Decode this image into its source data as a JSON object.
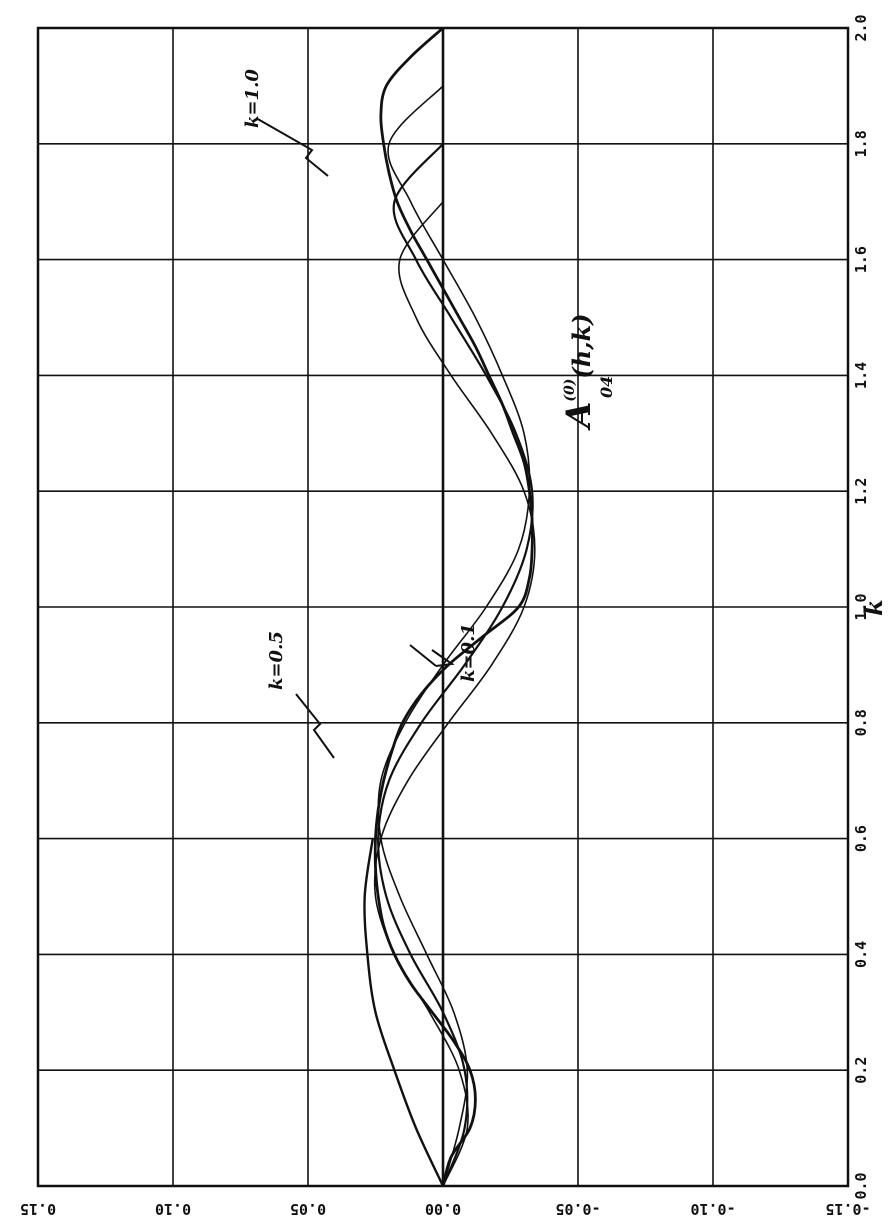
{
  "chart_data": {
    "type": "line",
    "orientation": "rotated-90-clockwise",
    "xlabel": "k",
    "ylabel": "",
    "function_label": "A",
    "function_superscript": "(0)",
    "function_subscript": "04",
    "function_args": "(h,k)",
    "xlim": [
      0.0,
      2.0
    ],
    "ylim": [
      -0.15,
      0.15
    ],
    "x_ticks": [
      "0.0",
      "0.2",
      "0.4",
      "0.6",
      "0.8",
      "1.0",
      "1.2",
      "1.4",
      "1.6",
      "1.8",
      "2.0"
    ],
    "y_ticks": [
      "-0.15",
      "-0.10",
      "-0.05",
      "0.00",
      "0.05",
      "0.10",
      "0.15"
    ],
    "grid": true,
    "annotations": [
      "k=1.0",
      "k=0.5",
      "k=0.1"
    ],
    "series": [
      {
        "x": [
          0.0,
          0.05,
          0.1,
          0.15,
          0.2,
          0.25,
          0.3,
          0.35,
          0.4,
          0.45,
          0.5,
          0.55,
          0.6,
          0.65,
          0.7,
          0.75,
          0.8,
          0.85,
          0.9,
          0.95,
          1.0,
          1.05,
          1.1,
          1.15,
          1.2,
          1.25,
          1.3,
          1.35,
          1.4,
          1.45,
          1.5,
          1.55,
          1.6,
          1.65,
          1.7,
          1.75,
          1.8,
          1.85,
          1.9,
          1.95,
          2.0
        ],
        "values": [
          0.0,
          -0.003,
          -0.01,
          -0.012,
          -0.01,
          -0.004,
          0.004,
          0.012,
          0.018,
          0.022,
          0.024,
          0.025,
          0.025,
          0.024,
          0.022,
          0.019,
          0.015,
          0.008,
          -0.002,
          -0.015,
          -0.028,
          -0.032,
          -0.033,
          -0.033,
          -0.032,
          -0.03,
          -0.026,
          -0.022,
          -0.017,
          -0.012,
          -0.006,
          0.0,
          0.006,
          0.012,
          0.017,
          0.02,
          0.022,
          0.023,
          0.021,
          0.012,
          0.0
        ]
      },
      {
        "x": [
          0.0,
          0.1,
          0.2,
          0.3,
          0.4,
          0.5,
          0.6,
          0.7,
          0.8,
          0.9,
          1.0,
          1.1,
          1.2,
          1.3,
          1.4,
          1.5,
          1.6,
          1.7,
          1.8,
          1.9
        ],
        "values": [
          0.0,
          -0.006,
          -0.009,
          -0.004,
          0.006,
          0.016,
          0.023,
          0.023,
          0.014,
          0.0,
          -0.016,
          -0.028,
          -0.032,
          -0.03,
          -0.022,
          -0.012,
          0.0,
          0.012,
          0.02,
          0.0
        ]
      },
      {
        "x": [
          0.0,
          0.1,
          0.2,
          0.3,
          0.4,
          0.5,
          0.6,
          0.7,
          0.8,
          0.9,
          1.0,
          1.1,
          1.2,
          1.3,
          1.4,
          1.5,
          1.6,
          1.7,
          1.8
        ],
        "values": [
          0.0,
          -0.008,
          -0.008,
          0.0,
          0.012,
          0.021,
          0.024,
          0.02,
          0.008,
          -0.008,
          -0.022,
          -0.031,
          -0.033,
          -0.027,
          -0.016,
          -0.003,
          0.01,
          0.018,
          0.0
        ]
      },
      {
        "x": [
          0.0,
          0.1,
          0.2,
          0.3,
          0.4,
          0.5,
          0.6,
          0.7,
          0.8,
          0.9,
          1.0,
          1.1,
          1.2,
          1.3,
          1.4,
          1.5,
          1.6,
          1.7
        ],
        "values": [
          0.0,
          -0.009,
          -0.006,
          0.005,
          0.018,
          0.025,
          0.023,
          0.013,
          -0.002,
          -0.018,
          -0.03,
          -0.034,
          -0.03,
          -0.018,
          -0.003,
          0.01,
          0.016,
          0.0
        ]
      },
      {
        "x": [
          0.0,
          0.1,
          0.2,
          0.3,
          0.4,
          0.5,
          0.6
        ],
        "values": [
          0.0,
          0.01,
          0.018,
          0.025,
          0.028,
          0.029,
          0.026
        ]
      }
    ]
  }
}
